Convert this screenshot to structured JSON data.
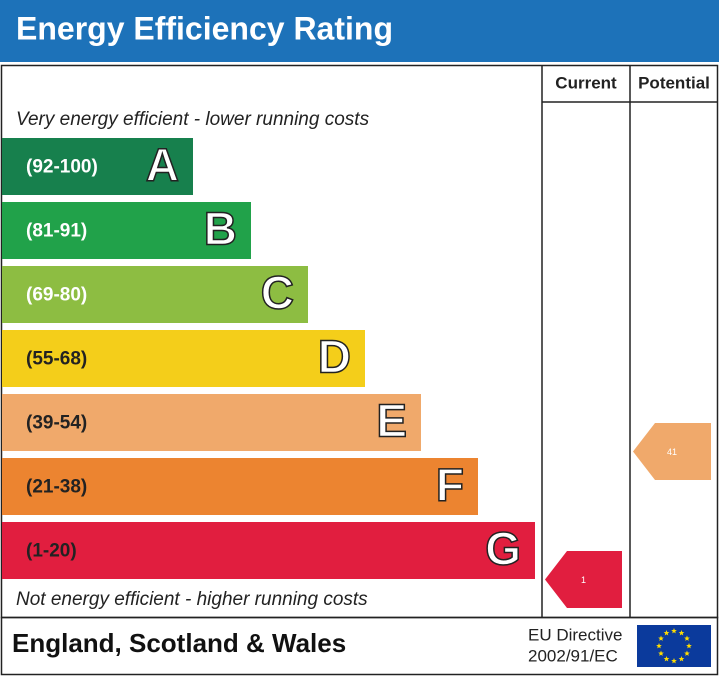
{
  "header": {
    "title": "Energy Efficiency Rating"
  },
  "columns": {
    "current": "Current",
    "potential": "Potential"
  },
  "top_note": "Very energy efficient - lower running costs",
  "bottom_note": "Not energy efficient - higher running costs",
  "bands": [
    {
      "range": "(92-100)",
      "letter": "A",
      "color": "#17804d"
    },
    {
      "range": "(81-91)",
      "letter": "B",
      "color": "#21a24a"
    },
    {
      "range": "(69-80)",
      "letter": "C",
      "color": "#8dbd42"
    },
    {
      "range": "(55-68)",
      "letter": "D",
      "color": "#f4ce1a"
    },
    {
      "range": "(39-54)",
      "letter": "E",
      "color": "#f0a96b"
    },
    {
      "range": "(21-38)",
      "letter": "F",
      "color": "#ec8430"
    },
    {
      "range": "(1-20)",
      "letter": "G",
      "color": "#e11e3f"
    }
  ],
  "ratings": {
    "current": 1,
    "potential": 41
  },
  "footer": {
    "region": "England, Scotland & Wales",
    "directive_line1": "EU Directive",
    "directive_line2": "2002/91/EC"
  }
}
